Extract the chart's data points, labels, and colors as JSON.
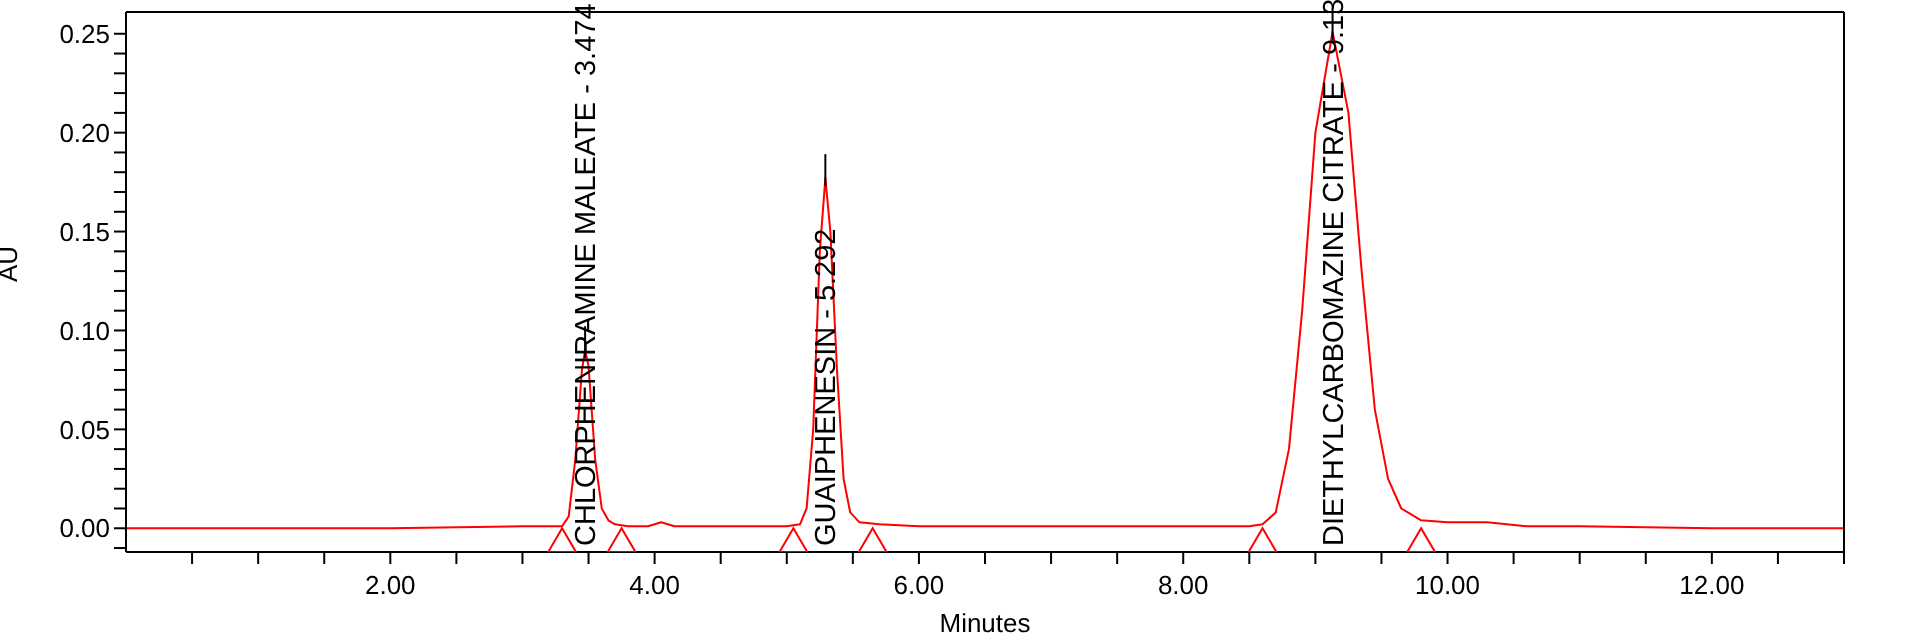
{
  "chart_data": {
    "type": "line",
    "xlabel": "Minutes",
    "ylabel": "AU",
    "xlim": [
      0,
      13
    ],
    "ylim": [
      -0.012,
      0.261
    ],
    "xticks": [
      {
        "value": 0.5,
        "label": null
      },
      {
        "value": 1,
        "label": null
      },
      {
        "value": 1.5,
        "label": null
      },
      {
        "value": 2,
        "label": "2.00"
      },
      {
        "value": 2.5,
        "label": null
      },
      {
        "value": 3,
        "label": null
      },
      {
        "value": 3.5,
        "label": null
      },
      {
        "value": 4,
        "label": "4.00"
      },
      {
        "value": 4.5,
        "label": null
      },
      {
        "value": 5,
        "label": null
      },
      {
        "value": 5.5,
        "label": null
      },
      {
        "value": 6,
        "label": "6.00"
      },
      {
        "value": 6.5,
        "label": null
      },
      {
        "value": 7,
        "label": null
      },
      {
        "value": 7.5,
        "label": null
      },
      {
        "value": 8,
        "label": "8.00"
      },
      {
        "value": 8.5,
        "label": null
      },
      {
        "value": 9,
        "label": null
      },
      {
        "value": 9.5,
        "label": null
      },
      {
        "value": 10,
        "label": "10.00"
      },
      {
        "value": 10.5,
        "label": null
      },
      {
        "value": 11,
        "label": null
      },
      {
        "value": 11.5,
        "label": null
      },
      {
        "value": 12,
        "label": "12.00"
      },
      {
        "value": 12.5,
        "label": null
      },
      {
        "value": 13,
        "label": null
      }
    ],
    "yticks": [
      {
        "value": -0.01,
        "label": null
      },
      {
        "value": 0,
        "label": "0.00"
      },
      {
        "value": 0.01,
        "label": null
      },
      {
        "value": 0.02,
        "label": null
      },
      {
        "value": 0.03,
        "label": null
      },
      {
        "value": 0.04,
        "label": null
      },
      {
        "value": 0.05,
        "label": "0.05"
      },
      {
        "value": 0.06,
        "label": null
      },
      {
        "value": 0.07,
        "label": null
      },
      {
        "value": 0.08,
        "label": null
      },
      {
        "value": 0.09,
        "label": null
      },
      {
        "value": 0.1,
        "label": "0.10"
      },
      {
        "value": 0.11,
        "label": null
      },
      {
        "value": 0.12,
        "label": null
      },
      {
        "value": 0.13,
        "label": null
      },
      {
        "value": 0.14,
        "label": null
      },
      {
        "value": 0.15,
        "label": "0.15"
      },
      {
        "value": 0.16,
        "label": null
      },
      {
        "value": 0.17,
        "label": null
      },
      {
        "value": 0.18,
        "label": null
      },
      {
        "value": 0.19,
        "label": null
      },
      {
        "value": 0.2,
        "label": "0.20"
      },
      {
        "value": 0.21,
        "label": null
      },
      {
        "value": 0.22,
        "label": null
      },
      {
        "value": 0.23,
        "label": null
      },
      {
        "value": 0.24,
        "label": null
      },
      {
        "value": 0.25,
        "label": "0.25"
      }
    ],
    "series": [
      {
        "color": "#ff0000",
        "marker": "none",
        "x": [
          0,
          1,
          2,
          3,
          3.3,
          3.35,
          3.4,
          3.45,
          3.474,
          3.5,
          3.55,
          3.6,
          3.65,
          3.7,
          3.8,
          3.95,
          4.05,
          4.15,
          4.5,
          5,
          5.1,
          5.15,
          5.2,
          5.25,
          5.292,
          5.33,
          5.38,
          5.43,
          5.48,
          5.55,
          5.7,
          6,
          7,
          8,
          8.5,
          8.6,
          8.7,
          8.8,
          8.9,
          9,
          9.13,
          9.25,
          9.35,
          9.45,
          9.55,
          9.65,
          9.8,
          10,
          10.3,
          10.6,
          11,
          12,
          13
        ],
        "values": [
          0,
          0,
          0,
          0.001,
          0.001,
          0.006,
          0.035,
          0.08,
          0.09,
          0.082,
          0.035,
          0.01,
          0.004,
          0.002,
          0.001,
          0.001,
          0.003,
          0.001,
          0.001,
          0.001,
          0.002,
          0.01,
          0.05,
          0.14,
          0.177,
          0.15,
          0.08,
          0.025,
          0.008,
          0.003,
          0.002,
          0.001,
          0.001,
          0.001,
          0.001,
          0.002,
          0.008,
          0.04,
          0.11,
          0.2,
          0.251,
          0.21,
          0.13,
          0.06,
          0.025,
          0.01,
          0.004,
          0.003,
          0.003,
          0.001,
          0.001,
          0,
          0
        ]
      },
      {
        "type": "scatter",
        "color": "#ff0000",
        "marker": "triangle",
        "x": [
          3.3,
          3.75,
          5.05,
          5.65,
          8.6,
          9.8
        ],
        "values": [
          -0.006,
          -0.006,
          -0.006,
          -0.006,
          -0.006,
          -0.006
        ]
      }
    ],
    "annotations": [
      {
        "text": "CHLORPHENIRAMINE MALEATE - 3.474",
        "x": 3.474,
        "y": 0.09
      },
      {
        "text": "GUAIPHENESIN - 5.292",
        "x": 5.292,
        "y": 0.177
      },
      {
        "text": "DIETHYLCARBOMAZINE CITRATE - 9.13",
        "x": 9.13,
        "y": 0.251
      }
    ]
  }
}
